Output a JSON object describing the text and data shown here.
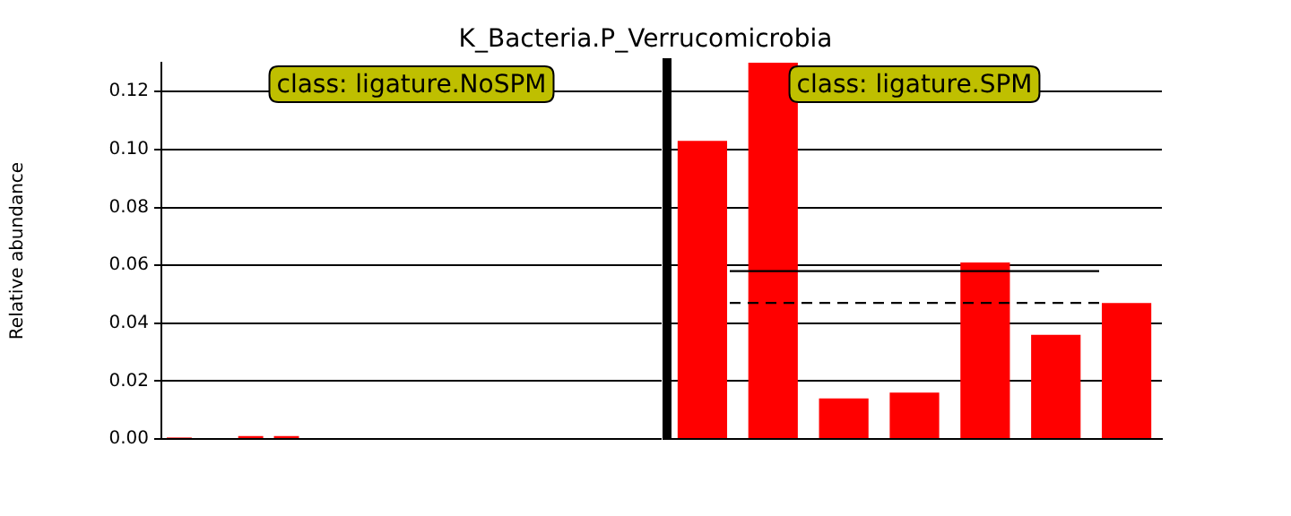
{
  "chart_data": [
    {
      "type": "bar",
      "title": "K_Bacteria.P_Verrucomicrobia",
      "ylabel": "Relative abundance",
      "tick_labels": "y",
      "categories": [
        null,
        null,
        null,
        null,
        null,
        null,
        null,
        null,
        null,
        null,
        null,
        null,
        null,
        null
      ],
      "ylim": [
        0,
        0.13
      ],
      "yticks": [
        {
          "value": 0,
          "label": "0.00"
        },
        0.02,
        0.04,
        0.06,
        0.08,
        {
          "value": 0.1,
          "label": "0.10"
        },
        0.12
      ],
      "grid": "y",
      "series": [
        {
          "color": "#ff0000",
          "values": [
            0.0005,
            0,
            0.001,
            0.001,
            0,
            0,
            0,
            0,
            0,
            0,
            0,
            0,
            0,
            0
          ]
        }
      ],
      "annotations": [
        "class: ligature.NoSPM"
      ]
    },
    {
      "type": "bar",
      "tick_labels": false,
      "categories": [
        null,
        null,
        null,
        null,
        null,
        null,
        null
      ],
      "ylim": [
        0,
        0.13
      ],
      "yticks": [
        0,
        0.02,
        0.04,
        0.06,
        0.08,
        0.1,
        0.12
      ],
      "grid": "y",
      "series": [
        {
          "color": "#ff0000",
          "values": [
            0.103,
            0.13,
            0.014,
            0.016,
            0.061,
            0.036,
            0.047
          ]
        }
      ],
      "ref_lines": [
        {
          "axis": "y",
          "value": 0.058,
          "color": "#000000",
          "line_style": "solid"
        },
        {
          "axis": "y",
          "value": 0.047,
          "color": "#000000",
          "line_style": "dashed"
        }
      ],
      "annotations": [
        "class: ligature.SPM"
      ]
    }
  ]
}
